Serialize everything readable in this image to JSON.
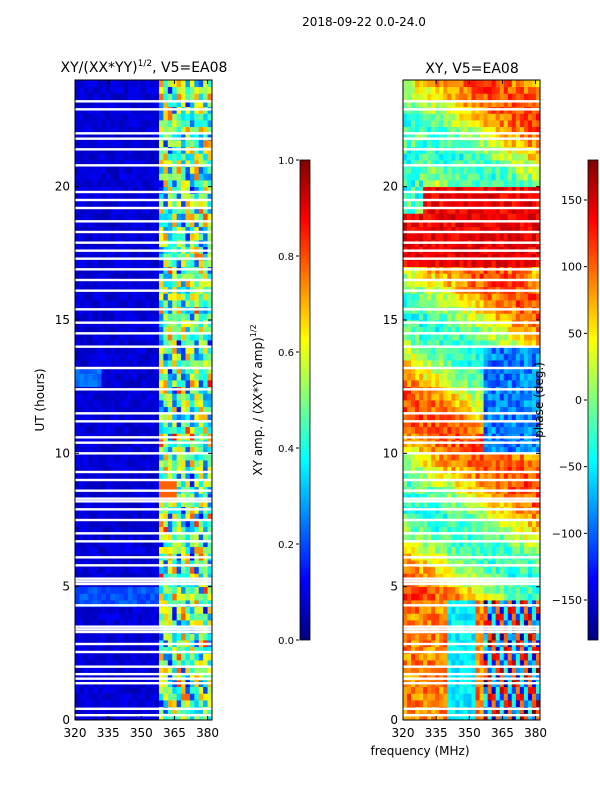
{
  "figure_title": "2018-09-22 0.0-24.0",
  "colors": {
    "jet": [
      "#00007f",
      "#0000ff",
      "#007fff",
      "#00ffff",
      "#7fff7f",
      "#ffff00",
      "#ff7f00",
      "#ff0000",
      "#7f0000"
    ],
    "flag_gap": "#ffffff",
    "axis": "#000000"
  },
  "chart_data": [
    {
      "type": "heatmap",
      "panel": "amplitude",
      "title_main": "XY/(XX*YY)",
      "title_sup": "1/2",
      "title_tail": ", V5=EA08",
      "xlabel": "",
      "ylabel": "UT (hours)",
      "xlim": [
        320,
        382
      ],
      "ylim": [
        0,
        24
      ],
      "xticks": [
        320,
        335,
        350,
        365,
        380
      ],
      "yticks": [
        0,
        5,
        10,
        15,
        20
      ],
      "quantity": "XY amplitude normalised by (XX*YY amp)^1/2",
      "rfi_free_band": [
        320,
        359
      ],
      "bright_band_MHz": [
        359,
        382
      ],
      "flagged_hours": [
        0.18,
        0.42,
        1.38,
        1.55,
        1.72,
        2.0,
        2.55,
        2.85,
        3.3,
        3.4,
        3.5,
        4.3,
        5.1,
        5.2,
        5.3,
        5.8,
        6.1,
        6.7,
        7.0,
        7.5,
        7.9,
        8.2,
        8.3,
        8.6,
        9.0,
        9.3,
        10.0,
        10.4,
        10.6,
        11.2,
        11.5,
        12.4,
        13.2,
        14.0,
        14.5,
        14.9,
        15.4,
        16.1,
        16.5,
        16.9,
        17.3,
        17.6,
        17.9,
        18.3,
        18.7,
        19.2,
        19.5,
        19.8,
        20.8,
        21.4,
        21.8,
        22.0,
        22.9,
        23.2
      ]
    },
    {
      "type": "heatmap",
      "panel": "phase",
      "title_main": "XY, V5=EA08",
      "xlabel": "frequency (MHz)",
      "ylabel": "",
      "xlim": [
        320,
        382
      ],
      "ylim": [
        0,
        24
      ],
      "xticks": [
        320,
        335,
        350,
        365,
        380
      ],
      "yticks": [
        0,
        5,
        10,
        15,
        20
      ],
      "quantity": "XY phase (deg)",
      "flagged_hours": [
        0.18,
        0.42,
        1.38,
        1.55,
        1.72,
        2.0,
        2.55,
        2.85,
        3.3,
        3.4,
        3.5,
        4.3,
        5.1,
        5.2,
        5.3,
        5.8,
        6.1,
        6.7,
        7.0,
        7.5,
        7.9,
        8.2,
        8.3,
        8.6,
        9.0,
        9.3,
        10.0,
        10.4,
        10.6,
        11.2,
        11.5,
        12.4,
        13.2,
        14.0,
        14.5,
        14.9,
        15.4,
        16.1,
        16.5,
        16.9,
        17.3,
        17.6,
        17.9,
        18.3,
        18.7,
        19.2,
        19.5,
        19.8,
        20.8,
        21.4,
        21.8,
        22.0,
        22.9,
        23.2
      ]
    },
    {
      "type": "colorbar",
      "for_panel": "amplitude",
      "label_main": "XY amp. / (XX*YY amp)",
      "label_sup": "1/2",
      "range": [
        0.0,
        1.0
      ],
      "ticks": [
        "0.0",
        "0.2",
        "0.4",
        "0.6",
        "0.8",
        "1.0"
      ],
      "tick_values": [
        0.0,
        0.2,
        0.4,
        0.6,
        0.8,
        1.0
      ]
    },
    {
      "type": "colorbar",
      "for_panel": "phase",
      "label_main": "phase (deg.)",
      "range": [
        -180,
        180
      ],
      "ticks": [
        "−150",
        "−100",
        "−50",
        "0",
        "50",
        "100",
        "150"
      ],
      "tick_values": [
        -150,
        -100,
        -50,
        0,
        50,
        100,
        150
      ]
    }
  ]
}
